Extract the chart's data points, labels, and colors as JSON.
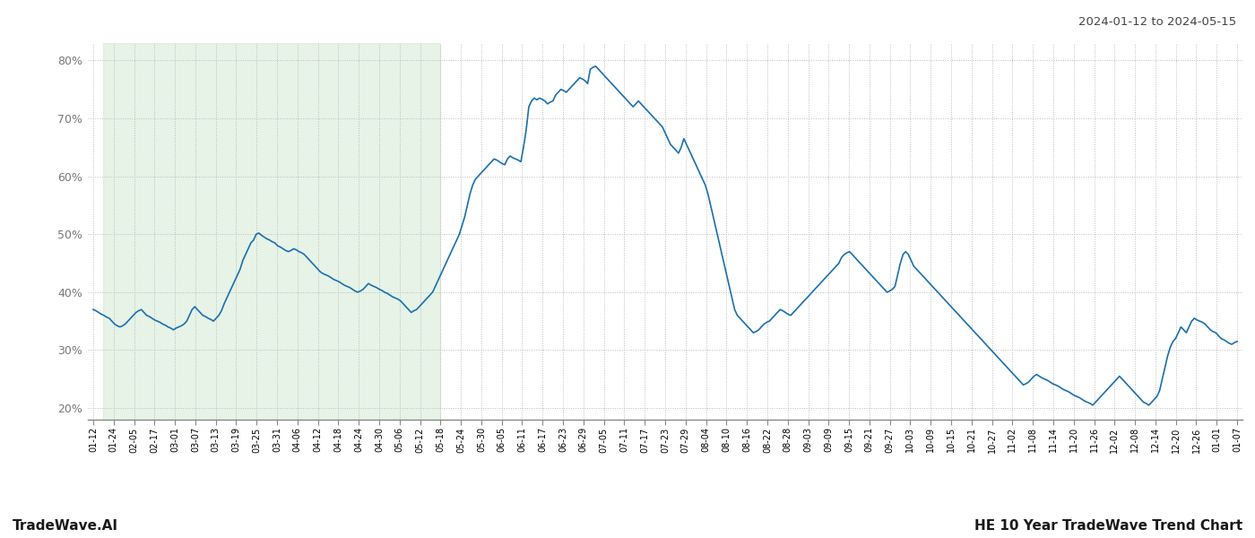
{
  "title_right": "2024-01-12 to 2024-05-15",
  "footer_left": "TradeWave.AI",
  "footer_right": "HE 10 Year TradeWave Trend Chart",
  "background_color": "#ffffff",
  "line_color": "#1a6faf",
  "line_width": 1.2,
  "shaded_region_color": "#c8e6c9",
  "shaded_alpha": 0.45,
  "ylim": [
    18,
    83
  ],
  "yticks": [
    20,
    30,
    40,
    50,
    60,
    70,
    80
  ],
  "grid_color": "#bbbbbb",
  "x_labels": [
    "01-12",
    "01-24",
    "02-05",
    "02-17",
    "03-01",
    "03-07",
    "03-13",
    "03-19",
    "03-25",
    "03-31",
    "04-06",
    "04-12",
    "04-18",
    "04-24",
    "04-30",
    "05-06",
    "05-12",
    "05-18",
    "05-24",
    "05-30",
    "06-05",
    "06-11",
    "06-17",
    "06-23",
    "06-29",
    "07-05",
    "07-11",
    "07-17",
    "07-23",
    "07-29",
    "08-04",
    "08-10",
    "08-16",
    "08-22",
    "08-28",
    "09-03",
    "09-09",
    "09-15",
    "09-21",
    "09-27",
    "10-03",
    "10-09",
    "10-15",
    "10-21",
    "10-27",
    "11-02",
    "11-08",
    "11-14",
    "11-20",
    "11-26",
    "12-02",
    "12-08",
    "12-14",
    "12-20",
    "12-26",
    "01-01",
    "01-07"
  ],
  "shaded_x_start_label": "01-18",
  "shaded_x_end_label": "05-18",
  "values": [
    37.0,
    36.8,
    36.5,
    36.2,
    36.0,
    35.7,
    35.5,
    35.0,
    34.5,
    34.2,
    34.0,
    34.2,
    34.5,
    35.0,
    35.5,
    36.0,
    36.5,
    36.8,
    37.0,
    36.5,
    36.0,
    35.8,
    35.5,
    35.2,
    35.0,
    34.8,
    34.5,
    34.3,
    34.0,
    33.8,
    33.5,
    33.8,
    34.0,
    34.2,
    34.5,
    35.0,
    36.0,
    37.0,
    37.5,
    37.0,
    36.5,
    36.0,
    35.8,
    35.5,
    35.3,
    35.0,
    35.5,
    36.0,
    36.8,
    38.0,
    39.0,
    40.0,
    41.0,
    42.0,
    43.0,
    44.0,
    45.5,
    46.5,
    47.5,
    48.5,
    49.0,
    50.0,
    50.2,
    49.8,
    49.5,
    49.2,
    49.0,
    48.7,
    48.5,
    48.0,
    47.8,
    47.5,
    47.2,
    47.0,
    47.2,
    47.5,
    47.3,
    47.0,
    46.8,
    46.5,
    46.0,
    45.5,
    45.0,
    44.5,
    44.0,
    43.5,
    43.2,
    43.0,
    42.8,
    42.5,
    42.2,
    42.0,
    41.8,
    41.5,
    41.2,
    41.0,
    40.8,
    40.5,
    40.2,
    40.0,
    40.2,
    40.5,
    41.0,
    41.5,
    41.2,
    41.0,
    40.8,
    40.5,
    40.3,
    40.0,
    39.8,
    39.5,
    39.2,
    39.0,
    38.8,
    38.5,
    38.0,
    37.5,
    37.0,
    36.5,
    36.8,
    37.0,
    37.5,
    38.0,
    38.5,
    39.0,
    39.5,
    40.0,
    41.0,
    42.0,
    43.0,
    44.0,
    45.0,
    46.0,
    47.0,
    48.0,
    49.0,
    50.0,
    51.5,
    53.0,
    55.0,
    57.0,
    58.5,
    59.5,
    60.0,
    60.5,
    61.0,
    61.5,
    62.0,
    62.5,
    63.0,
    62.8,
    62.5,
    62.2,
    62.0,
    63.0,
    63.5,
    63.2,
    63.0,
    62.8,
    62.5,
    65.0,
    68.0,
    72.0,
    73.0,
    73.5,
    73.2,
    73.5,
    73.3,
    73.0,
    72.5,
    72.8,
    73.0,
    74.0,
    74.5,
    75.0,
    74.8,
    74.5,
    75.0,
    75.5,
    76.0,
    76.5,
    77.0,
    76.8,
    76.5,
    76.0,
    78.5,
    78.8,
    79.0,
    78.5,
    78.0,
    77.5,
    77.0,
    76.5,
    76.0,
    75.5,
    75.0,
    74.5,
    74.0,
    73.5,
    73.0,
    72.5,
    72.0,
    72.5,
    73.0,
    72.5,
    72.0,
    71.5,
    71.0,
    70.5,
    70.0,
    69.5,
    69.0,
    68.5,
    67.5,
    66.5,
    65.5,
    65.0,
    64.5,
    64.0,
    65.0,
    66.5,
    65.5,
    64.5,
    63.5,
    62.5,
    61.5,
    60.5,
    59.5,
    58.5,
    57.0,
    55.0,
    53.0,
    51.0,
    49.0,
    47.0,
    45.0,
    43.0,
    41.0,
    39.0,
    37.0,
    36.0,
    35.5,
    35.0,
    34.5,
    34.0,
    33.5,
    33.0,
    33.2,
    33.5,
    34.0,
    34.5,
    34.8,
    35.0,
    35.5,
    36.0,
    36.5,
    37.0,
    36.8,
    36.5,
    36.2,
    36.0,
    36.5,
    37.0,
    37.5,
    38.0,
    38.5,
    39.0,
    39.5,
    40.0,
    40.5,
    41.0,
    41.5,
    42.0,
    42.5,
    43.0,
    43.5,
    44.0,
    44.5,
    45.0,
    46.0,
    46.5,
    46.8,
    47.0,
    46.5,
    46.0,
    45.5,
    45.0,
    44.5,
    44.0,
    43.5,
    43.0,
    42.5,
    42.0,
    41.5,
    41.0,
    40.5,
    40.0,
    40.2,
    40.5,
    41.0,
    43.0,
    45.0,
    46.5,
    47.0,
    46.5,
    45.5,
    44.5,
    44.0,
    43.5,
    43.0,
    42.5,
    42.0,
    41.5,
    41.0,
    40.5,
    40.0,
    39.5,
    39.0,
    38.5,
    38.0,
    37.5,
    37.0,
    36.5,
    36.0,
    35.5,
    35.0,
    34.5,
    34.0,
    33.5,
    33.0,
    32.5,
    32.0,
    31.5,
    31.0,
    30.5,
    30.0,
    29.5,
    29.0,
    28.5,
    28.0,
    27.5,
    27.0,
    26.5,
    26.0,
    25.5,
    25.0,
    24.5,
    24.0,
    24.2,
    24.5,
    25.0,
    25.5,
    25.8,
    25.5,
    25.2,
    25.0,
    24.8,
    24.5,
    24.2,
    24.0,
    23.8,
    23.5,
    23.2,
    23.0,
    22.8,
    22.5,
    22.2,
    22.0,
    21.8,
    21.5,
    21.2,
    21.0,
    20.8,
    20.5,
    21.0,
    21.5,
    22.0,
    22.5,
    23.0,
    23.5,
    24.0,
    24.5,
    25.0,
    25.5,
    25.0,
    24.5,
    24.0,
    23.5,
    23.0,
    22.5,
    22.0,
    21.5,
    21.0,
    20.8,
    20.5,
    21.0,
    21.5,
    22.0,
    23.0,
    25.0,
    27.0,
    29.0,
    30.5,
    31.5,
    32.0,
    33.0,
    34.0,
    33.5,
    33.0,
    34.0,
    35.0,
    35.5,
    35.2,
    35.0,
    34.8,
    34.5,
    34.0,
    33.5,
    33.2,
    33.0,
    32.5,
    32.0,
    31.8,
    31.5,
    31.2,
    31.0,
    31.3,
    31.5
  ],
  "n_points": 419
}
